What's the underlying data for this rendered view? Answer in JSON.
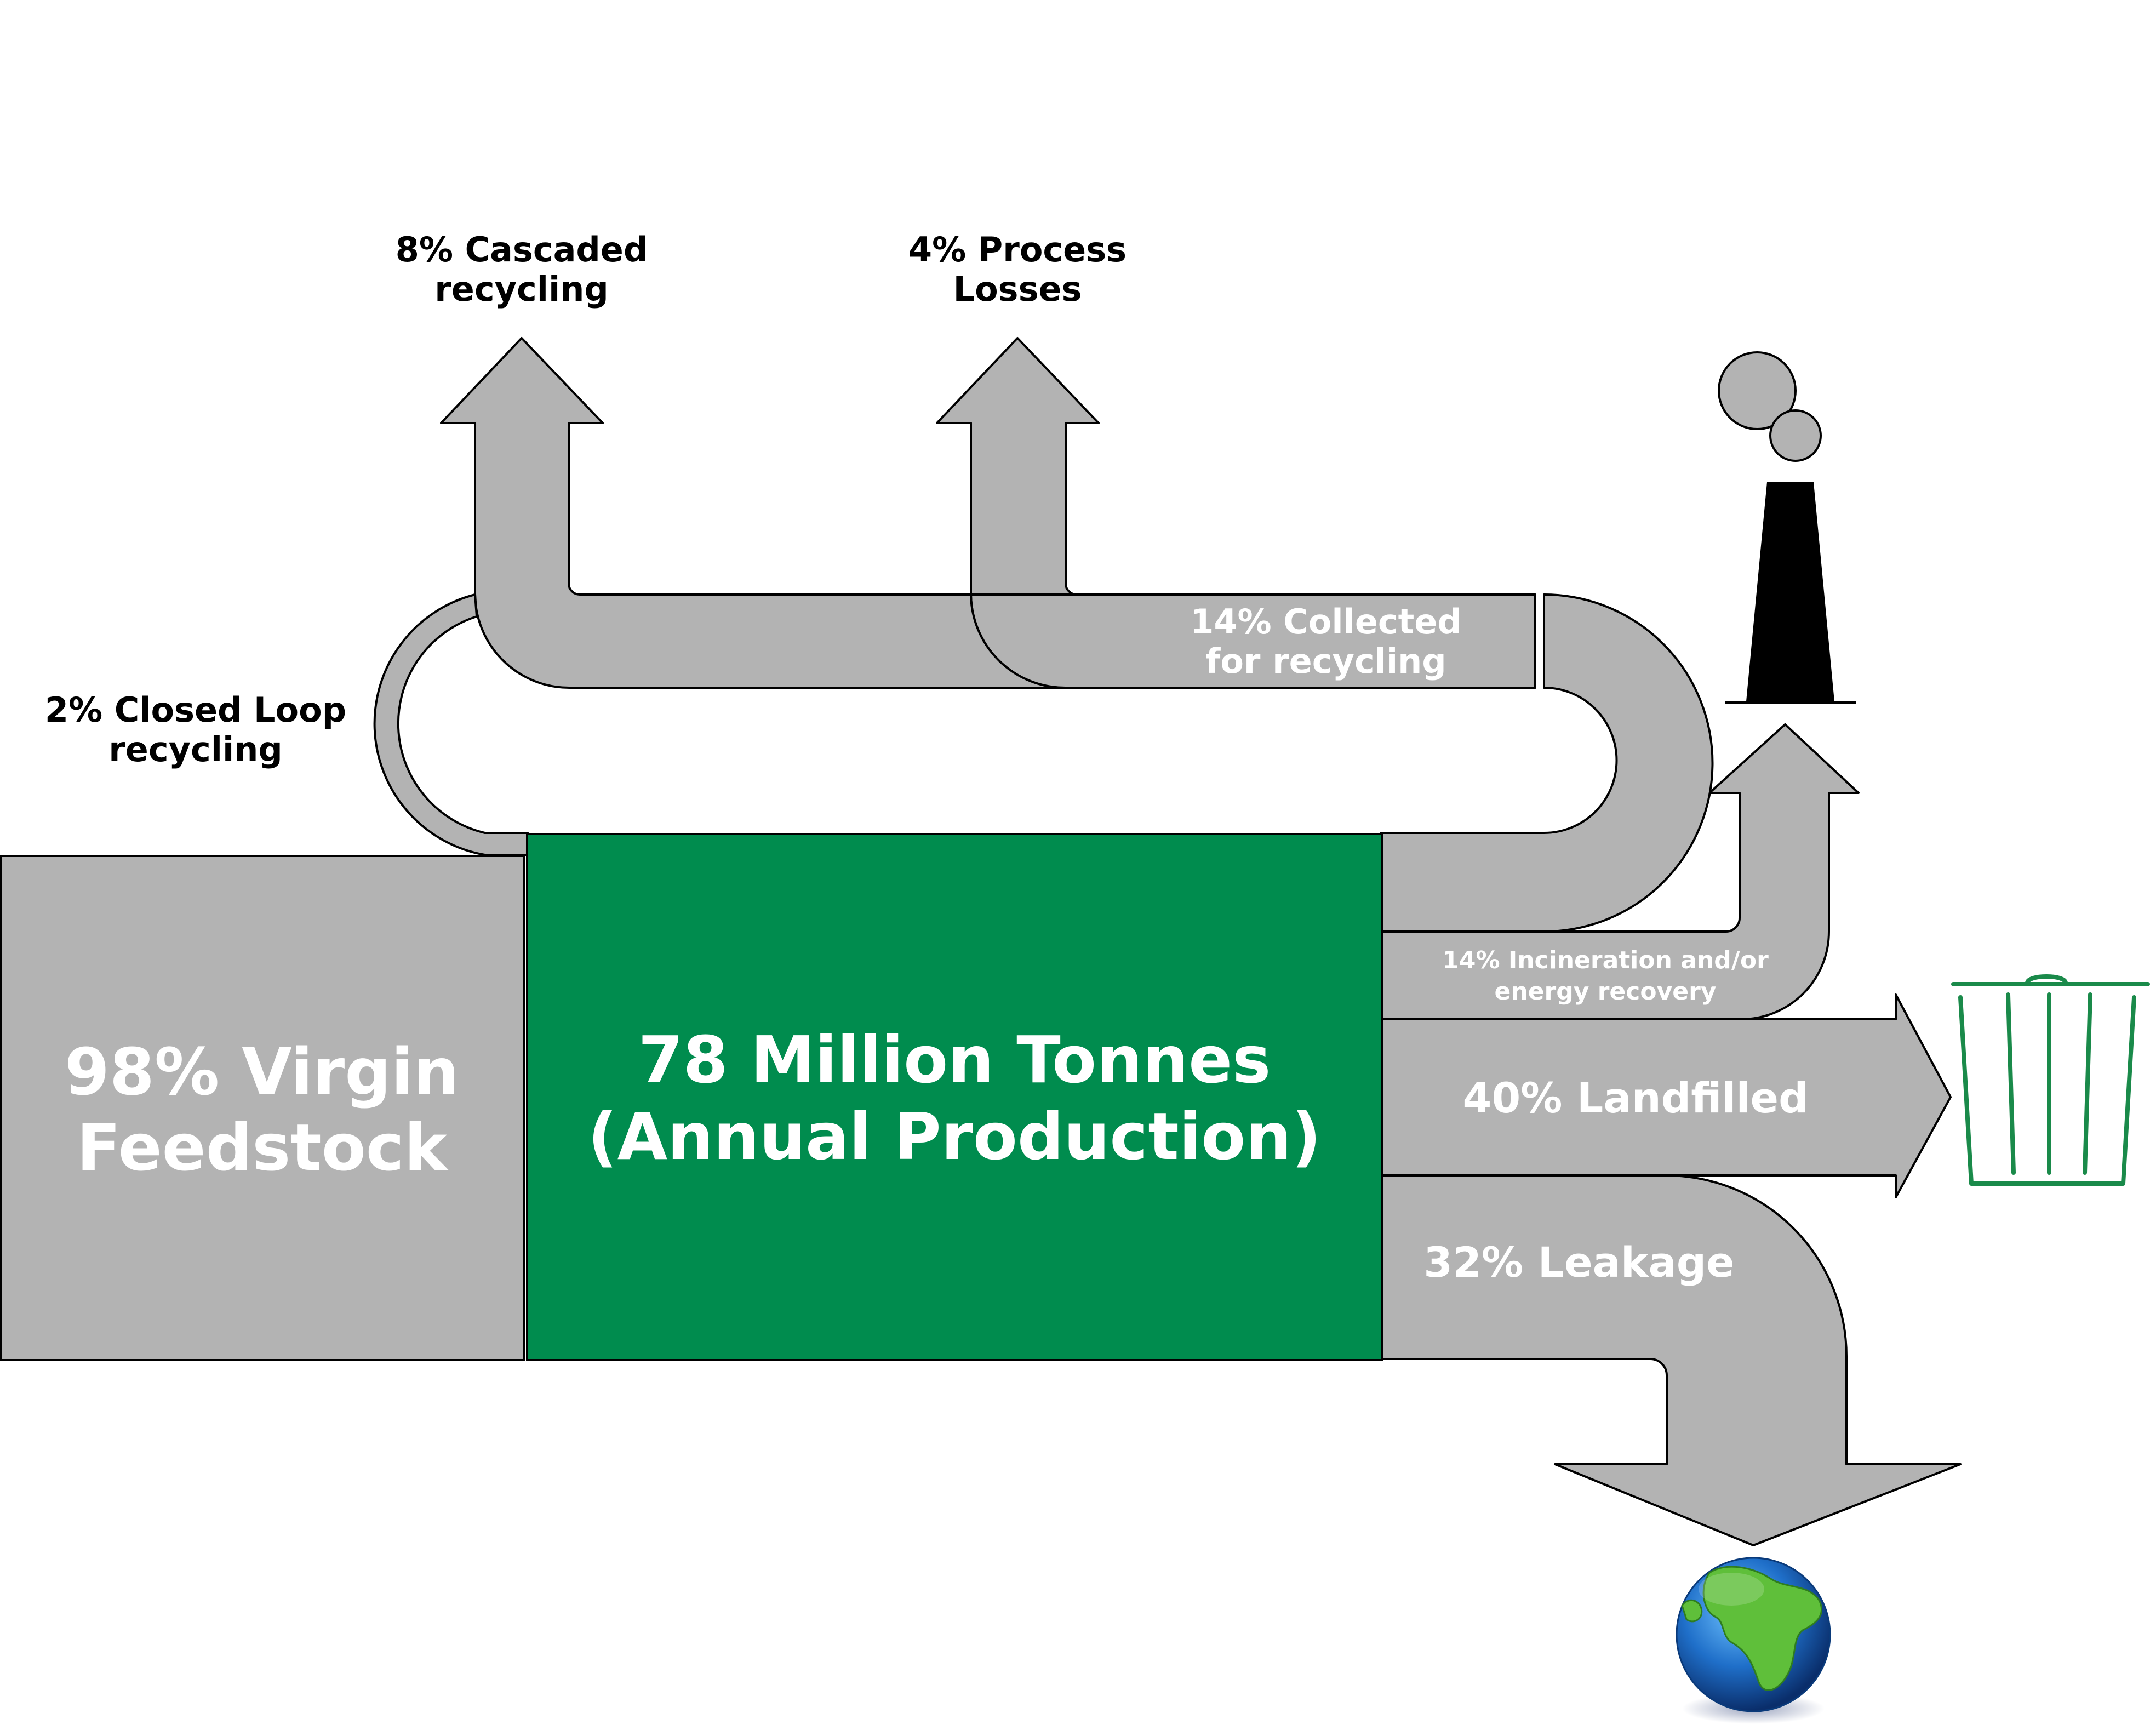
{
  "diagram": {
    "virgin_feedstock": {
      "line1": "98% Virgin",
      "line2": "Feedstock"
    },
    "production": {
      "line1": "78 Million Tonnes",
      "line2": "(Annual Production)"
    },
    "cascaded": {
      "line1": "8% Cascaded",
      "line2": "recycling"
    },
    "process_losses": {
      "line1": "4% Process",
      "line2": "Losses"
    },
    "closed_loop": {
      "line1": "2% Closed Loop",
      "line2": "recycling"
    },
    "collected": {
      "line1": "14% Collected",
      "line2": "for recycling"
    },
    "incineration": {
      "line1": "14% Incineration and/or",
      "line2": "energy recovery"
    },
    "landfilled": {
      "label": "40% Landfilled"
    },
    "leakage": {
      "label": "32% Leakage"
    }
  },
  "icons": [
    "smokestack-icon",
    "trash-bin-icon",
    "globe-icon"
  ],
  "colors": {
    "flow_gray": "#b3b3b3",
    "production_green": "#008c4e",
    "trash_green": "#1a8a4a",
    "label_dark": "#000000",
    "label_light": "#ffffff"
  }
}
